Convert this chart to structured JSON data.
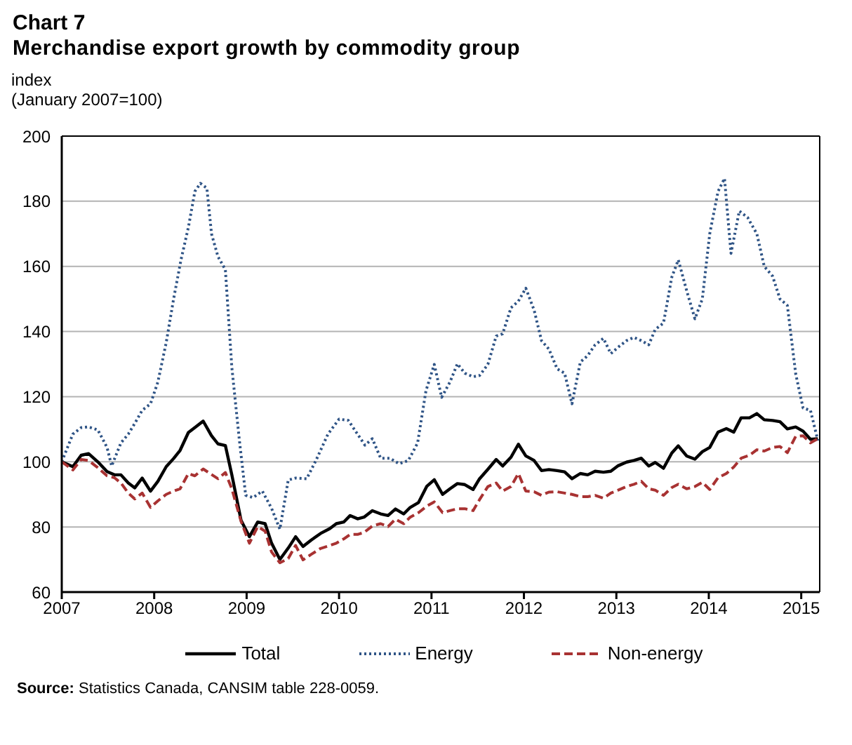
{
  "chart_data": {
    "type": "line",
    "title": "Chart 7",
    "subtitle": "Merchandise export growth by commodity group",
    "ylabel": "index\n(January 2007=100)",
    "annotations": [
      "Source: Statistics Canada, CANSIM table 228-0059."
    ],
    "xlim": [
      2007,
      2015.2
    ],
    "xticks": [
      2007,
      2008,
      2009,
      2010,
      2011,
      2012,
      2013,
      2014,
      2015
    ],
    "ylim": [
      60,
      200
    ],
    "yticks": [
      60,
      80,
      100,
      120,
      140,
      160,
      180,
      200
    ],
    "grid": "y",
    "legend": "bottom",
    "marker": "none",
    "series": [
      {
        "name": "Total",
        "color": "#000000",
        "line_style": "solid",
        "x": [
          2007.0,
          2007.12,
          2007.21,
          2007.29,
          2007.39,
          2007.49,
          2007.57,
          2007.64,
          2007.72,
          2007.79,
          2007.87,
          2007.96,
          2008.04,
          2008.13,
          2008.21,
          2008.28,
          2008.37,
          2008.44,
          2008.53,
          2008.62,
          2008.69,
          2008.77,
          2008.84,
          2008.94,
          2009.03,
          2009.12,
          2009.2,
          2009.27,
          2009.36,
          2009.45,
          2009.53,
          2009.61,
          2009.7,
          2009.8,
          2009.9,
          2009.97,
          2010.05,
          2010.12,
          2010.2,
          2010.27,
          2010.36,
          2010.45,
          2010.53,
          2010.61,
          2010.7,
          2010.77,
          2010.86,
          2010.95,
          2011.03,
          2011.12,
          2011.2,
          2011.28,
          2011.36,
          2011.45,
          2011.52,
          2011.61,
          2011.7,
          2011.77,
          2011.86,
          2011.94,
          2012.02,
          2012.11,
          2012.19,
          2012.27,
          2012.36,
          2012.44,
          2012.52,
          2012.61,
          2012.69,
          2012.77,
          2012.86,
          2012.94,
          2013.02,
          2013.11,
          2013.19,
          2013.27,
          2013.35,
          2013.42,
          2013.51,
          2013.6,
          2013.67,
          2013.76,
          2013.85,
          2013.93,
          2014.01,
          2014.1,
          2014.19,
          2014.27,
          2014.35,
          2014.44,
          2014.52,
          2014.6,
          2014.69,
          2014.77,
          2014.85,
          2014.94,
          2015.02,
          2015.1,
          2015.18
        ],
        "values": [
          100,
          98.5,
          102,
          102.5,
          100,
          97,
          96,
          96,
          93.5,
          92,
          95,
          91,
          94,
          98.5,
          101,
          103.5,
          109,
          110.5,
          112.5,
          108,
          105.5,
          105,
          96,
          82,
          77,
          81.5,
          81,
          75,
          70,
          73.5,
          77,
          74,
          76,
          78,
          79.5,
          81,
          81.5,
          83.5,
          82.5,
          83,
          85,
          84,
          83.5,
          85.5,
          84,
          86,
          87.5,
          92.5,
          94.5,
          90,
          91.7,
          93.3,
          93,
          91.5,
          94.8,
          97.7,
          100.7,
          98.7,
          101.4,
          105.4,
          101.8,
          100.4,
          97.3,
          97.6,
          97.3,
          96.9,
          94.8,
          96.4,
          96,
          97.1,
          96.8,
          97.1,
          98.8,
          99.9,
          100.4,
          101.1,
          98.7,
          99.8,
          98,
          102.7,
          104.9,
          101.8,
          100.8,
          103.1,
          104.4,
          109.1,
          110.2,
          109.1,
          113.5,
          113.5,
          114.8,
          112.9,
          112.7,
          112.3,
          110.1,
          110.7,
          109.4,
          106.9,
          107.1
        ]
      },
      {
        "name": "Energy",
        "color": "#2f5486",
        "line_style": "dotted",
        "x": [
          2007.0,
          2007.12,
          2007.21,
          2007.29,
          2007.39,
          2007.49,
          2007.54,
          2007.64,
          2007.72,
          2007.79,
          2007.87,
          2007.96,
          2008.04,
          2008.13,
          2008.21,
          2008.29,
          2008.37,
          2008.44,
          2008.5,
          2008.57,
          2008.62,
          2008.69,
          2008.77,
          2008.84,
          2008.92,
          2008.99,
          2009.07,
          2009.17,
          2009.27,
          2009.36,
          2009.45,
          2009.53,
          2009.65,
          2009.75,
          2009.88,
          2010.0,
          2010.1,
          2010.2,
          2010.28,
          2010.36,
          2010.45,
          2010.55,
          2010.65,
          2010.75,
          2010.85,
          2010.94,
          2011.03,
          2011.11,
          2011.2,
          2011.28,
          2011.36,
          2011.45,
          2011.52,
          2011.61,
          2011.7,
          2011.77,
          2011.86,
          2011.94,
          2012.02,
          2012.11,
          2012.19,
          2012.27,
          2012.36,
          2012.44,
          2012.52,
          2012.61,
          2012.69,
          2012.77,
          2012.86,
          2012.94,
          2013.02,
          2013.11,
          2013.19,
          2013.27,
          2013.35,
          2013.42,
          2013.51,
          2013.6,
          2013.67,
          2013.76,
          2013.85,
          2013.93,
          2014.01,
          2014.1,
          2014.17,
          2014.24,
          2014.33,
          2014.42,
          2014.52,
          2014.6,
          2014.69,
          2014.77,
          2014.85,
          2014.94,
          2015.02,
          2015.1,
          2015.18
        ],
        "values": [
          100,
          108.5,
          110.5,
          110.7,
          109.8,
          104.4,
          98.7,
          105.8,
          108.5,
          111.8,
          115.8,
          117.8,
          124.5,
          136.6,
          150,
          162,
          172,
          183,
          185.5,
          184,
          170,
          163,
          159,
          129,
          107,
          89.7,
          89,
          91,
          85.7,
          79.3,
          94.4,
          95,
          94.8,
          100.4,
          108.5,
          113.1,
          112.7,
          108.5,
          105.1,
          107.1,
          101.1,
          101.1,
          99.4,
          100.4,
          105.8,
          121.8,
          129.9,
          119.8,
          124.5,
          130.1,
          127.2,
          126.1,
          126.5,
          129.9,
          138.6,
          139.3,
          147.3,
          149.3,
          153.3,
          146.6,
          137.2,
          134.6,
          128.5,
          127.2,
          117.8,
          130.6,
          132.6,
          135.9,
          137.9,
          133.2,
          135.2,
          137.2,
          138.2,
          137.2,
          135.9,
          140.6,
          142.6,
          156.7,
          162,
          152.6,
          143.9,
          150,
          170,
          183,
          187,
          164,
          177,
          175,
          170,
          160,
          157,
          150,
          148,
          127,
          116.5,
          115.8,
          106.5
        ]
      },
      {
        "name": "Non-energy",
        "color": "#a83232",
        "line_style": "dashed",
        "x": [
          2007.0,
          2007.12,
          2007.21,
          2007.29,
          2007.39,
          2007.49,
          2007.57,
          2007.64,
          2007.72,
          2007.79,
          2007.87,
          2007.96,
          2008.04,
          2008.13,
          2008.21,
          2008.28,
          2008.37,
          2008.44,
          2008.53,
          2008.62,
          2008.69,
          2008.77,
          2008.84,
          2008.94,
          2009.03,
          2009.12,
          2009.2,
          2009.27,
          2009.36,
          2009.45,
          2009.53,
          2009.61,
          2009.7,
          2009.8,
          2009.9,
          2009.97,
          2010.05,
          2010.12,
          2010.2,
          2010.27,
          2010.36,
          2010.45,
          2010.53,
          2010.61,
          2010.7,
          2010.77,
          2010.86,
          2010.95,
          2011.03,
          2011.12,
          2011.2,
          2011.28,
          2011.36,
          2011.45,
          2011.52,
          2011.61,
          2011.7,
          2011.77,
          2011.86,
          2011.94,
          2012.02,
          2012.11,
          2012.19,
          2012.27,
          2012.36,
          2012.44,
          2012.52,
          2012.61,
          2012.69,
          2012.77,
          2012.86,
          2012.94,
          2013.02,
          2013.11,
          2013.19,
          2013.27,
          2013.35,
          2013.42,
          2013.51,
          2013.6,
          2013.67,
          2013.76,
          2013.85,
          2013.93,
          2014.01,
          2014.1,
          2014.19,
          2014.27,
          2014.35,
          2014.44,
          2014.52,
          2014.6,
          2014.69,
          2014.77,
          2014.85,
          2014.94,
          2015.02,
          2015.1,
          2015.18
        ],
        "values": [
          100,
          97.5,
          100.7,
          100.4,
          98.2,
          95.7,
          95.1,
          93.5,
          90.4,
          88.6,
          90.4,
          86,
          88,
          90,
          91,
          91.7,
          96.4,
          95.7,
          97.8,
          96.1,
          94.8,
          96.7,
          91.7,
          81.7,
          75,
          80.1,
          78.7,
          72.3,
          69,
          70.3,
          74.3,
          69.9,
          71.6,
          73.4,
          74.3,
          75,
          76.3,
          77.7,
          77.7,
          78.3,
          80.3,
          81,
          80.1,
          82.4,
          81,
          83,
          84.4,
          86.4,
          87.7,
          84.4,
          85,
          85.6,
          85.6,
          85,
          88.4,
          92.4,
          93.5,
          91,
          92.4,
          96.4,
          91,
          90.8,
          89.7,
          90.7,
          90.8,
          90.4,
          90,
          89.3,
          89.3,
          89.7,
          88.8,
          90.4,
          91.3,
          92.4,
          93.1,
          94,
          91.7,
          91.3,
          89.7,
          92.1,
          93.1,
          91.7,
          92.4,
          93.7,
          91.5,
          95.1,
          96.4,
          98.4,
          101.1,
          102,
          103.7,
          103.3,
          104.4,
          104.7,
          102.8,
          107.8,
          108,
          105.8,
          107.1
        ]
      }
    ]
  }
}
